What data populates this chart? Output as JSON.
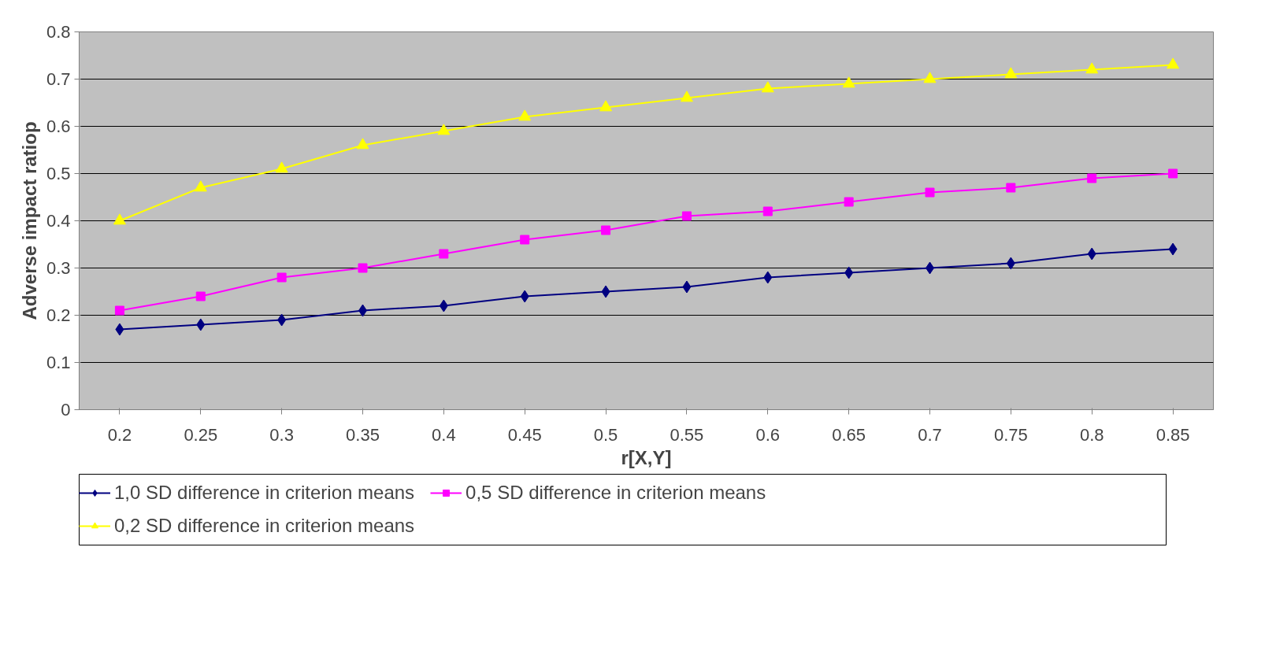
{
  "chart_data": {
    "type": "line",
    "xlabel": "r[X,Y]",
    "ylabel": "Adverse impact ratiop",
    "categories": [
      "0.2",
      "0.25",
      "0.3",
      "0.35",
      "0.4",
      "0.45",
      "0.5",
      "0.55",
      "0.6",
      "0.65",
      "0.7",
      "0.75",
      "0.8",
      "0.85"
    ],
    "series": [
      {
        "name": "1,0 SD difference in criterion means",
        "color": "#000080",
        "marker": "diamond",
        "values": [
          0.17,
          0.18,
          0.19,
          0.21,
          0.22,
          0.24,
          0.25,
          0.26,
          0.28,
          0.29,
          0.3,
          0.31,
          0.33,
          0.34
        ]
      },
      {
        "name": "0,5 SD difference in criterion means",
        "color": "#ff00ff",
        "marker": "square",
        "values": [
          0.21,
          0.24,
          0.28,
          0.3,
          0.33,
          0.36,
          0.38,
          0.41,
          0.42,
          0.44,
          0.46,
          0.47,
          0.49,
          0.5
        ]
      },
      {
        "name": "0,2 SD difference in criterion means",
        "color": "#ffff00",
        "marker": "triangle",
        "values": [
          0.4,
          0.47,
          0.51,
          0.56,
          0.59,
          0.62,
          0.64,
          0.66,
          0.68,
          0.69,
          0.7,
          0.71,
          0.72,
          0.73
        ]
      }
    ],
    "ylim": [
      0,
      0.8
    ],
    "yticks": [
      0,
      0.1,
      0.2,
      0.3,
      0.4,
      0.5,
      0.6,
      0.7,
      0.8
    ],
    "grid": "y",
    "legend": "bottom",
    "line_style": "solid"
  }
}
